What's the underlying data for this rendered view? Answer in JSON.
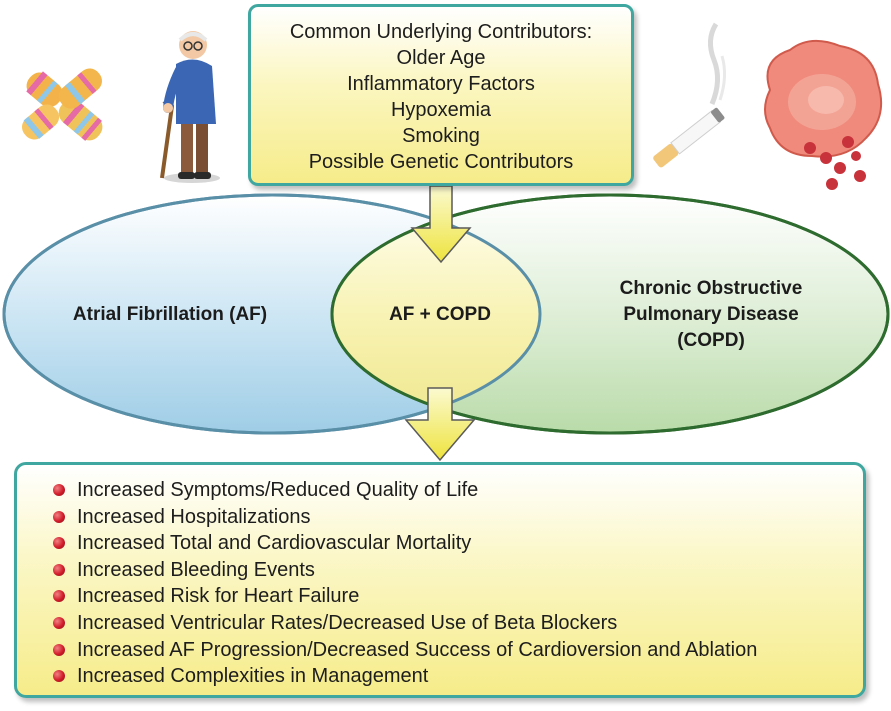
{
  "contributors": {
    "heading": "Common Underlying Contributors:",
    "items": [
      "Older Age",
      "Inflammatory Factors",
      "Hypoxemia",
      "Smoking",
      "Possible Genetic Contributors"
    ]
  },
  "venn": {
    "left_label": "Atrial Fibrillation (AF)",
    "overlap_label": "AF + COPD",
    "right_label_lines": [
      "Chronic Obstructive",
      "Pulmonary Disease",
      "(COPD)"
    ]
  },
  "outcomes": [
    "Increased Symptoms/Reduced Quality of Life",
    "Increased Hospitalizations",
    "Increased Total and Cardiovascular Mortality",
    "Increased Bleeding Events",
    "Increased Risk for Heart Failure",
    "Increased Ventricular Rates/Decreased Use of Beta Blockers",
    "Increased AF Progression/Decreased Success of Cardioversion and Ablation",
    "Increased Complexities in Management"
  ],
  "colors": {
    "box_border": "#3fa7a0",
    "af_ellipse_stroke": "#5a8fa8",
    "copd_ellipse_stroke": "#2e6b2e",
    "arrow_fill": "#f4ef6a",
    "bullet": "#d11b2a"
  },
  "illustrations": [
    "chromosome-illustration",
    "older-man-with-cane-illustration",
    "cigarette-illustration",
    "lung-tissue-illustration"
  ]
}
